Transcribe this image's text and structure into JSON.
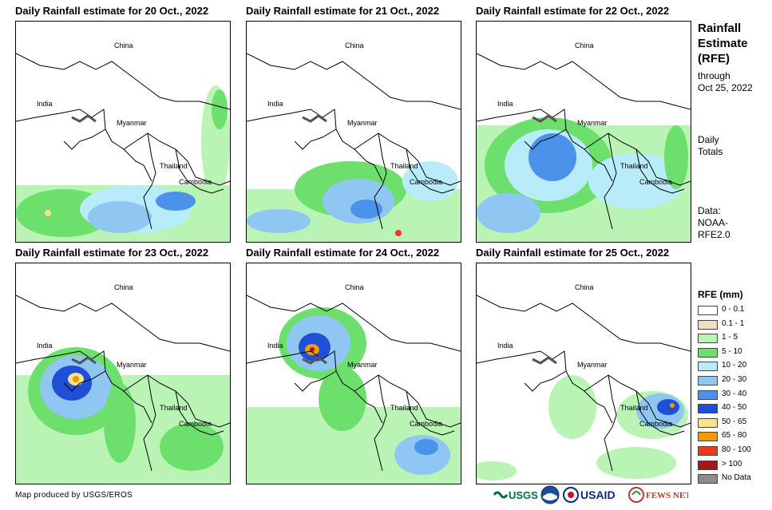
{
  "panels": [
    {
      "title": "Daily Rainfall estimate for 20 Oct., 2022",
      "labels": {
        "china": "China",
        "india": "India",
        "myanmar": "Myanmar",
        "thailand": "Thailand",
        "cambodia": "Cambodia"
      }
    },
    {
      "title": "Daily Rainfall estimate for 21 Oct., 2022",
      "labels": {
        "china": "China",
        "india": "India",
        "myanmar": "Myanmar",
        "thailand": "Thailand",
        "cambodia": "Cambodia"
      }
    },
    {
      "title": "Daily Rainfall estimate for 22 Oct., 2022",
      "labels": {
        "china": "China",
        "india": "India",
        "myanmar": "Myanmar",
        "thailand": "Thailand",
        "cambodia": "Cambodia"
      }
    },
    {
      "title": "Daily Rainfall estimate for 23 Oct., 2022",
      "labels": {
        "china": "China",
        "india": "India",
        "myanmar": "Myanmar",
        "thailand": "Thailand",
        "cambodia": "Cambodia"
      }
    },
    {
      "title": "Daily Rainfall estimate for 24 Oct., 2022",
      "labels": {
        "china": "China",
        "india": "India",
        "myanmar": "Myanmar",
        "thailand": "Thailand",
        "cambodia": "Cambodia"
      }
    },
    {
      "title": "Daily Rainfall estimate for 25 Oct., 2022",
      "labels": {
        "china": "China",
        "india": "India",
        "myanmar": "Myanmar",
        "thailand": "Thailand",
        "cambodia": "Cambodia"
      }
    }
  ],
  "side": {
    "title_line1": "Rainfall",
    "title_line2": "Estimate",
    "title_line3": "(RFE)",
    "through_line1": "through",
    "through_line2": "Oct 25, 2022",
    "totals_line1": "Daily",
    "totals_line2": "Totals",
    "data_line1": "Data:",
    "data_line2": "NOAA-",
    "data_line3": "RFE2.0"
  },
  "legend": {
    "title": "RFE (mm)",
    "items": [
      {
        "label": "0 - 0.1",
        "color": "#ffffff"
      },
      {
        "label": "0.1 - 1",
        "color": "#f0dfbe"
      },
      {
        "label": "1 - 5",
        "color": "#b9f4b4"
      },
      {
        "label": "5 - 10",
        "color": "#6cdf6c"
      },
      {
        "label": "10 - 20",
        "color": "#b9ecfa"
      },
      {
        "label": "20 - 30",
        "color": "#8fc7f2"
      },
      {
        "label": "30 - 40",
        "color": "#4a92ea"
      },
      {
        "label": "40 - 50",
        "color": "#1f4fd6"
      },
      {
        "label": "50 - 65",
        "color": "#f8e38a"
      },
      {
        "label": "65 - 80",
        "color": "#f29a00"
      },
      {
        "label": "80 - 100",
        "color": "#ec3a1e"
      },
      {
        "label": "> 100",
        "color": "#a01818"
      },
      {
        "label": "No Data",
        "color": "#8c8c8c"
      }
    ]
  },
  "footer": {
    "credit": "Map produced by USGS/EROS",
    "logo_usgs": "USGS",
    "logo_usaid": "USAID",
    "logo_fewsnet": "FEWS NET"
  }
}
